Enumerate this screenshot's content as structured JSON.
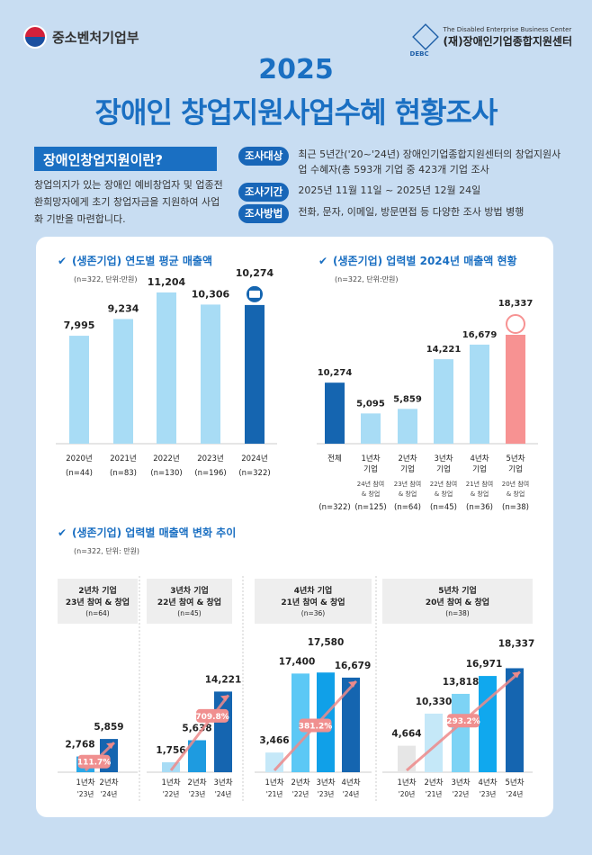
{
  "header": {
    "ministry": "중소벤처기업부",
    "center_en": "The Disabled Enterprise Business Center",
    "center_ko": "(재)장애인기업종합지원센터",
    "center_abbr": "DEBC",
    "year": "2025",
    "title": "장애인 창업지원사업수혜 현황조사"
  },
  "intro": {
    "heading": "장애인창업지원이란?",
    "text": "창업의지가 있는 장애인 예비창업자 및 업종전환희망자에게 초기 창업자금을 지원하여 사업화 기반을 마련합니다.",
    "rows": [
      {
        "label": "조사대상",
        "value": "최근 5년간('20~'24년) 장애인기업종합지원센터의 창업지원사업 수혜자(총 593개 기업 중 423개 기업 조사"
      },
      {
        "label": "조사기간",
        "value": "2025년 11월 11일 ~ 2025년 12월 24일"
      },
      {
        "label": "조사방법",
        "value": "전화, 문자, 이메일, 방문면접 등 다양한 조사 방법 병행"
      }
    ]
  },
  "colors": {
    "brand": "#1a6fc2",
    "dark_bar": "#1565b0",
    "light_bar": "#a8dcf5",
    "highlight_bar": "#f79292",
    "arrow": "#ee8a8a"
  },
  "chart_data": [
    {
      "type": "bar",
      "title": "(생존기업) 연도별 평균 매출액",
      "subtitle": "(n=322, 단위:만원)",
      "categories": [
        "2020년",
        "2021년",
        "2022년",
        "2023년",
        "2024년"
      ],
      "sublabels": [
        "(n=44)",
        "(n=83)",
        "(n=130)",
        "(n=196)",
        "(n=322)"
      ],
      "values": [
        7995,
        9234,
        11204,
        10306,
        10274
      ],
      "value_labels": [
        "7,995",
        "9,234",
        "11,204",
        "10,306",
        "10,274"
      ]
    },
    {
      "type": "bar",
      "title": "(생존기업) 업력별 2024년 매출액 현황",
      "subtitle": "(n=322, 단위:만원)",
      "categories": [
        "전체",
        "1년차 기업",
        "2년차 기업",
        "3년차 기업",
        "4년차 기업",
        "5년차 기업"
      ],
      "notes": [
        "",
        "24년 참여 & 창업",
        "23년 참여 & 창업",
        "22년 참여 & 창업",
        "21년 참여 & 창업",
        "20년 참여 & 창업"
      ],
      "sublabels": [
        "(n=322)",
        "(n=125)",
        "(n=64)",
        "(n=45)",
        "(n=36)",
        "(n=38)"
      ],
      "values": [
        10274,
        5095,
        5859,
        14221,
        16679,
        18337
      ],
      "value_labels": [
        "10,274",
        "5,095",
        "5,859",
        "14,221",
        "16,679",
        "18,337"
      ]
    },
    {
      "type": "bar",
      "title": "(생존기업) 업력별 매출액 변화 추이",
      "subtitle": "(n=322, 단위: 만원)",
      "panels": [
        {
          "title": "2년차 기업",
          "subtitle": "23년 참여 & 창업",
          "n": "(n=64)",
          "categories": [
            "1년차",
            "2년차"
          ],
          "years": [
            "'23년",
            "'24년"
          ],
          "values": [
            2768,
            5859
          ],
          "value_labels": [
            "2,768",
            "5,859"
          ],
          "growth": "111.7%"
        },
        {
          "title": "3년차 기업",
          "subtitle": "22년 참여 & 창업",
          "n": "(n=45)",
          "categories": [
            "1년차",
            "2년차",
            "3년차"
          ],
          "years": [
            "'22년",
            "'23년",
            "'24년"
          ],
          "values": [
            1756,
            5638,
            14221
          ],
          "value_labels": [
            "1,756",
            "5,638",
            "14,221"
          ],
          "growth": "709.8%"
        },
        {
          "title": "4년차 기업",
          "subtitle": "21년 참여 & 창업",
          "n": "(n=36)",
          "categories": [
            "1년차",
            "2년차",
            "3년차",
            "4년차"
          ],
          "years": [
            "'21년",
            "'22년",
            "'23년",
            "'24년"
          ],
          "values": [
            3466,
            17400,
            17580,
            16679
          ],
          "value_labels": [
            "3,466",
            "17,400",
            "17,580",
            "16,679"
          ],
          "growth": "381.2%"
        },
        {
          "title": "5년차 기업",
          "subtitle": "20년 참여 & 창업",
          "n": "(n=38)",
          "categories": [
            "1년차",
            "2년차",
            "3년차",
            "4년차",
            "5년차"
          ],
          "years": [
            "'20년",
            "'21년",
            "'22년",
            "'23년",
            "'24년"
          ],
          "values": [
            4664,
            10330,
            13818,
            16971,
            18337
          ],
          "value_labels": [
            "4,664",
            "10,330",
            "13,818",
            "16,971",
            "18,337"
          ],
          "growth": "293.2%"
        }
      ]
    }
  ]
}
